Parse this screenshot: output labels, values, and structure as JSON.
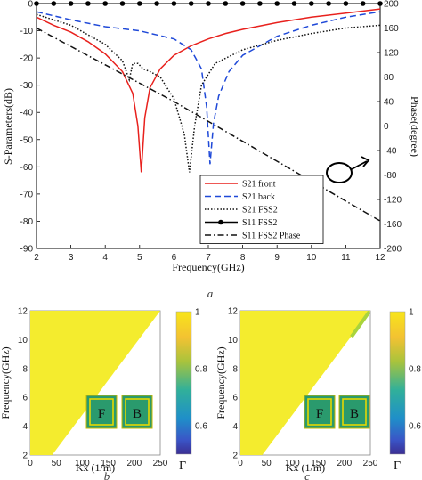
{
  "chart_data": [
    {
      "type": "line",
      "panel_label": "a",
      "xlabel": "Frequency(GHz)",
      "ylabel": "S-Parameters(dB)",
      "y2label": "Phase(degree)",
      "xlim": [
        2,
        12
      ],
      "ylim": [
        -90,
        0
      ],
      "y2lim": [
        -200,
        200
      ],
      "xticks": [
        "2",
        "3",
        "4",
        "5",
        "6",
        "7",
        "8",
        "9",
        "10",
        "11",
        "12"
      ],
      "yticks": [
        "0",
        "-10",
        "-20",
        "-30",
        "-40",
        "-50",
        "-60",
        "-70",
        "-80",
        "-90"
      ],
      "y2ticks": [
        "200",
        "160",
        "120",
        "80",
        "40",
        "0",
        "-40",
        "-80",
        "-120",
        "-160",
        "-200"
      ],
      "legend_position": "bottom-center",
      "series": [
        {
          "name": "S21 front",
          "axis": "left",
          "color": "#e8211d",
          "style": "solid",
          "x": [
            2,
            2.5,
            3,
            3.5,
            4,
            4.5,
            4.8,
            4.95,
            5.05,
            5.15,
            5.3,
            5.6,
            6,
            6.5,
            7,
            7.5,
            8,
            9,
            10,
            11,
            12
          ],
          "y": [
            -5,
            -8,
            -10.5,
            -14,
            -18.5,
            -25,
            -33,
            -45,
            -62,
            -42,
            -31,
            -24,
            -19,
            -15.5,
            -13,
            -11,
            -9.5,
            -7,
            -5,
            -3.5,
            -2
          ]
        },
        {
          "name": "S21 back",
          "axis": "left",
          "color": "#1f49d8",
          "style": "dashed",
          "x": [
            2,
            3,
            4,
            5,
            6,
            6.5,
            6.8,
            6.95,
            7.05,
            7.15,
            7.3,
            7.6,
            8,
            9,
            10,
            11,
            12
          ],
          "y": [
            -3,
            -6,
            -8.5,
            -10,
            -13,
            -17,
            -24,
            -38,
            -59,
            -44,
            -34,
            -25,
            -19,
            -12,
            -8,
            -5,
            -3
          ]
        },
        {
          "name": "S21 FSS2",
          "axis": "left",
          "color": "#111111",
          "style": "dotted",
          "x": [
            2,
            3,
            4,
            4.5,
            4.7,
            4.8,
            4.95,
            5.1,
            5.3,
            5.6,
            6,
            6.3,
            6.45,
            6.6,
            6.8,
            7.2,
            8,
            9,
            10,
            11,
            12
          ],
          "y": [
            -4,
            -8,
            -15,
            -21,
            -28,
            -22,
            -22,
            -24,
            -25,
            -27,
            -35,
            -48,
            -62,
            -45,
            -30,
            -22,
            -17,
            -13.5,
            -11,
            -9,
            -8
          ]
        },
        {
          "name": "S11 FSS2",
          "axis": "left",
          "color": "#000000",
          "style": "solid-dots",
          "x": [
            2,
            2.5,
            3,
            3.5,
            4,
            4.5,
            5,
            5.5,
            6,
            6.5,
            7,
            7.5,
            8,
            8.5,
            9,
            9.5,
            10,
            10.5,
            11,
            11.5,
            12
          ],
          "y": [
            0,
            0,
            0,
            0,
            0,
            0,
            0,
            0,
            0,
            0,
            0,
            0,
            0,
            0,
            0,
            0,
            0,
            0,
            0,
            0,
            0
          ]
        },
        {
          "name": "S11 FSS2 Phase",
          "axis": "right",
          "color": "#111111",
          "style": "dashdot",
          "x": [
            2,
            4,
            6,
            8,
            10,
            12
          ],
          "y": [
            160,
            100,
            40,
            -25,
            -90,
            -155
          ]
        }
      ]
    },
    {
      "type": "heatmap",
      "panel_label": "b",
      "xlabel": "Kx (1/m)",
      "ylabel": "Frequency(GHz)",
      "xlim": [
        0,
        250
      ],
      "ylim": [
        2,
        12
      ],
      "xticks": [
        "0",
        "50",
        "100",
        "150",
        "200",
        "250"
      ],
      "yticks": [
        "2",
        "4",
        "6",
        "8",
        "10",
        "12"
      ],
      "colorbar_label": "Γ",
      "colorbar_ticks": [
        "1",
        "0.8",
        "0.6"
      ],
      "colorbar_range": [
        0.5,
        1
      ],
      "valid_region": "below light line: Kx < 20.95 × f",
      "value": 1.0,
      "inset_labels": [
        "F",
        "B"
      ]
    },
    {
      "type": "heatmap",
      "panel_label": "c",
      "xlabel": "Kx (1/m)",
      "ylabel": "Frequency(GHz)",
      "xlim": [
        0,
        250
      ],
      "ylim": [
        2,
        12
      ],
      "xticks": [
        "0",
        "50",
        "100",
        "150",
        "200",
        "250"
      ],
      "yticks": [
        "2",
        "4",
        "6",
        "8",
        "10",
        "12"
      ],
      "colorbar_label": "Γ",
      "colorbar_ticks": [
        "1",
        "0.8",
        "0.6"
      ],
      "colorbar_range": [
        0.5,
        1
      ],
      "valid_region": "below light line: Kx < 20.95 × f",
      "value": 0.98,
      "inset_labels": [
        "F",
        "B"
      ]
    }
  ],
  "colors": {
    "heat_high": "#f4ec2e",
    "heat_edge": "#a9d43c",
    "inset_bg": "#2a9a6d",
    "inset_ring": "#e6d800"
  }
}
